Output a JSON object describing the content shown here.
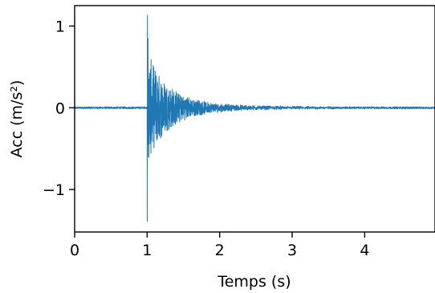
{
  "chart_data": {
    "type": "line",
    "xlabel": "Temps (s)",
    "ylabel": "Acc (m/s²)",
    "xlim": [
      0,
      4.97
    ],
    "ylim": [
      -1.52,
      1.25
    ],
    "x_ticks": [
      0,
      1,
      2,
      3,
      4
    ],
    "x_tick_labels": [
      "0",
      "1",
      "2",
      "3",
      "4"
    ],
    "y_ticks": [
      1,
      0,
      -1
    ],
    "y_tick_labels": [
      "1",
      "0",
      "−1"
    ],
    "grid": false,
    "line_color": "#1f77b4",
    "series": [
      {
        "signal": "impulse response",
        "onset_s": 1.0,
        "peak_max": 1.13,
        "peak_min": -1.39,
        "noise_level": 0.012,
        "decay_to_baseline_s": 2.1,
        "sample_step_s": 0.002
      }
    ]
  }
}
